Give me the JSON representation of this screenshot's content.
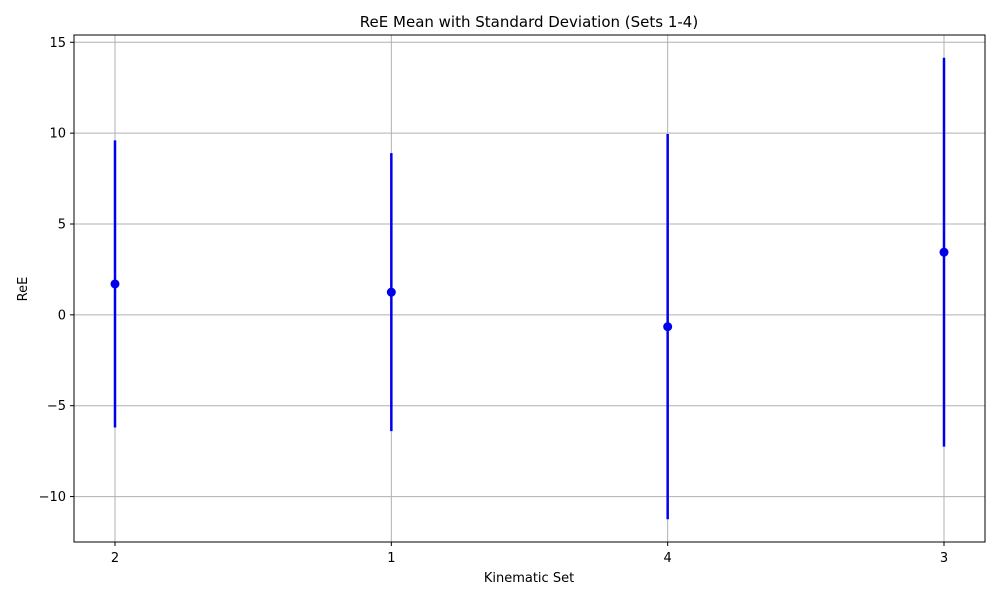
{
  "chart_data": {
    "type": "errorbar",
    "title": "ReE Mean with Standard Deviation (Sets 1-4)",
    "xlabel": "Kinematic Set",
    "ylabel": "ReE",
    "categories": [
      "2",
      "1",
      "4",
      "3"
    ],
    "means": [
      1.7,
      1.25,
      -0.65,
      3.45
    ],
    "std": [
      7.9,
      7.65,
      10.6,
      10.7
    ],
    "ylim": [
      -12.5,
      15.4
    ],
    "yticks": [
      -10,
      -5,
      0,
      5,
      10,
      15
    ],
    "ytick_labels": [
      "−10",
      "−5",
      "0",
      "5",
      "10",
      "15"
    ],
    "grid": true,
    "color": "#0000ee"
  }
}
